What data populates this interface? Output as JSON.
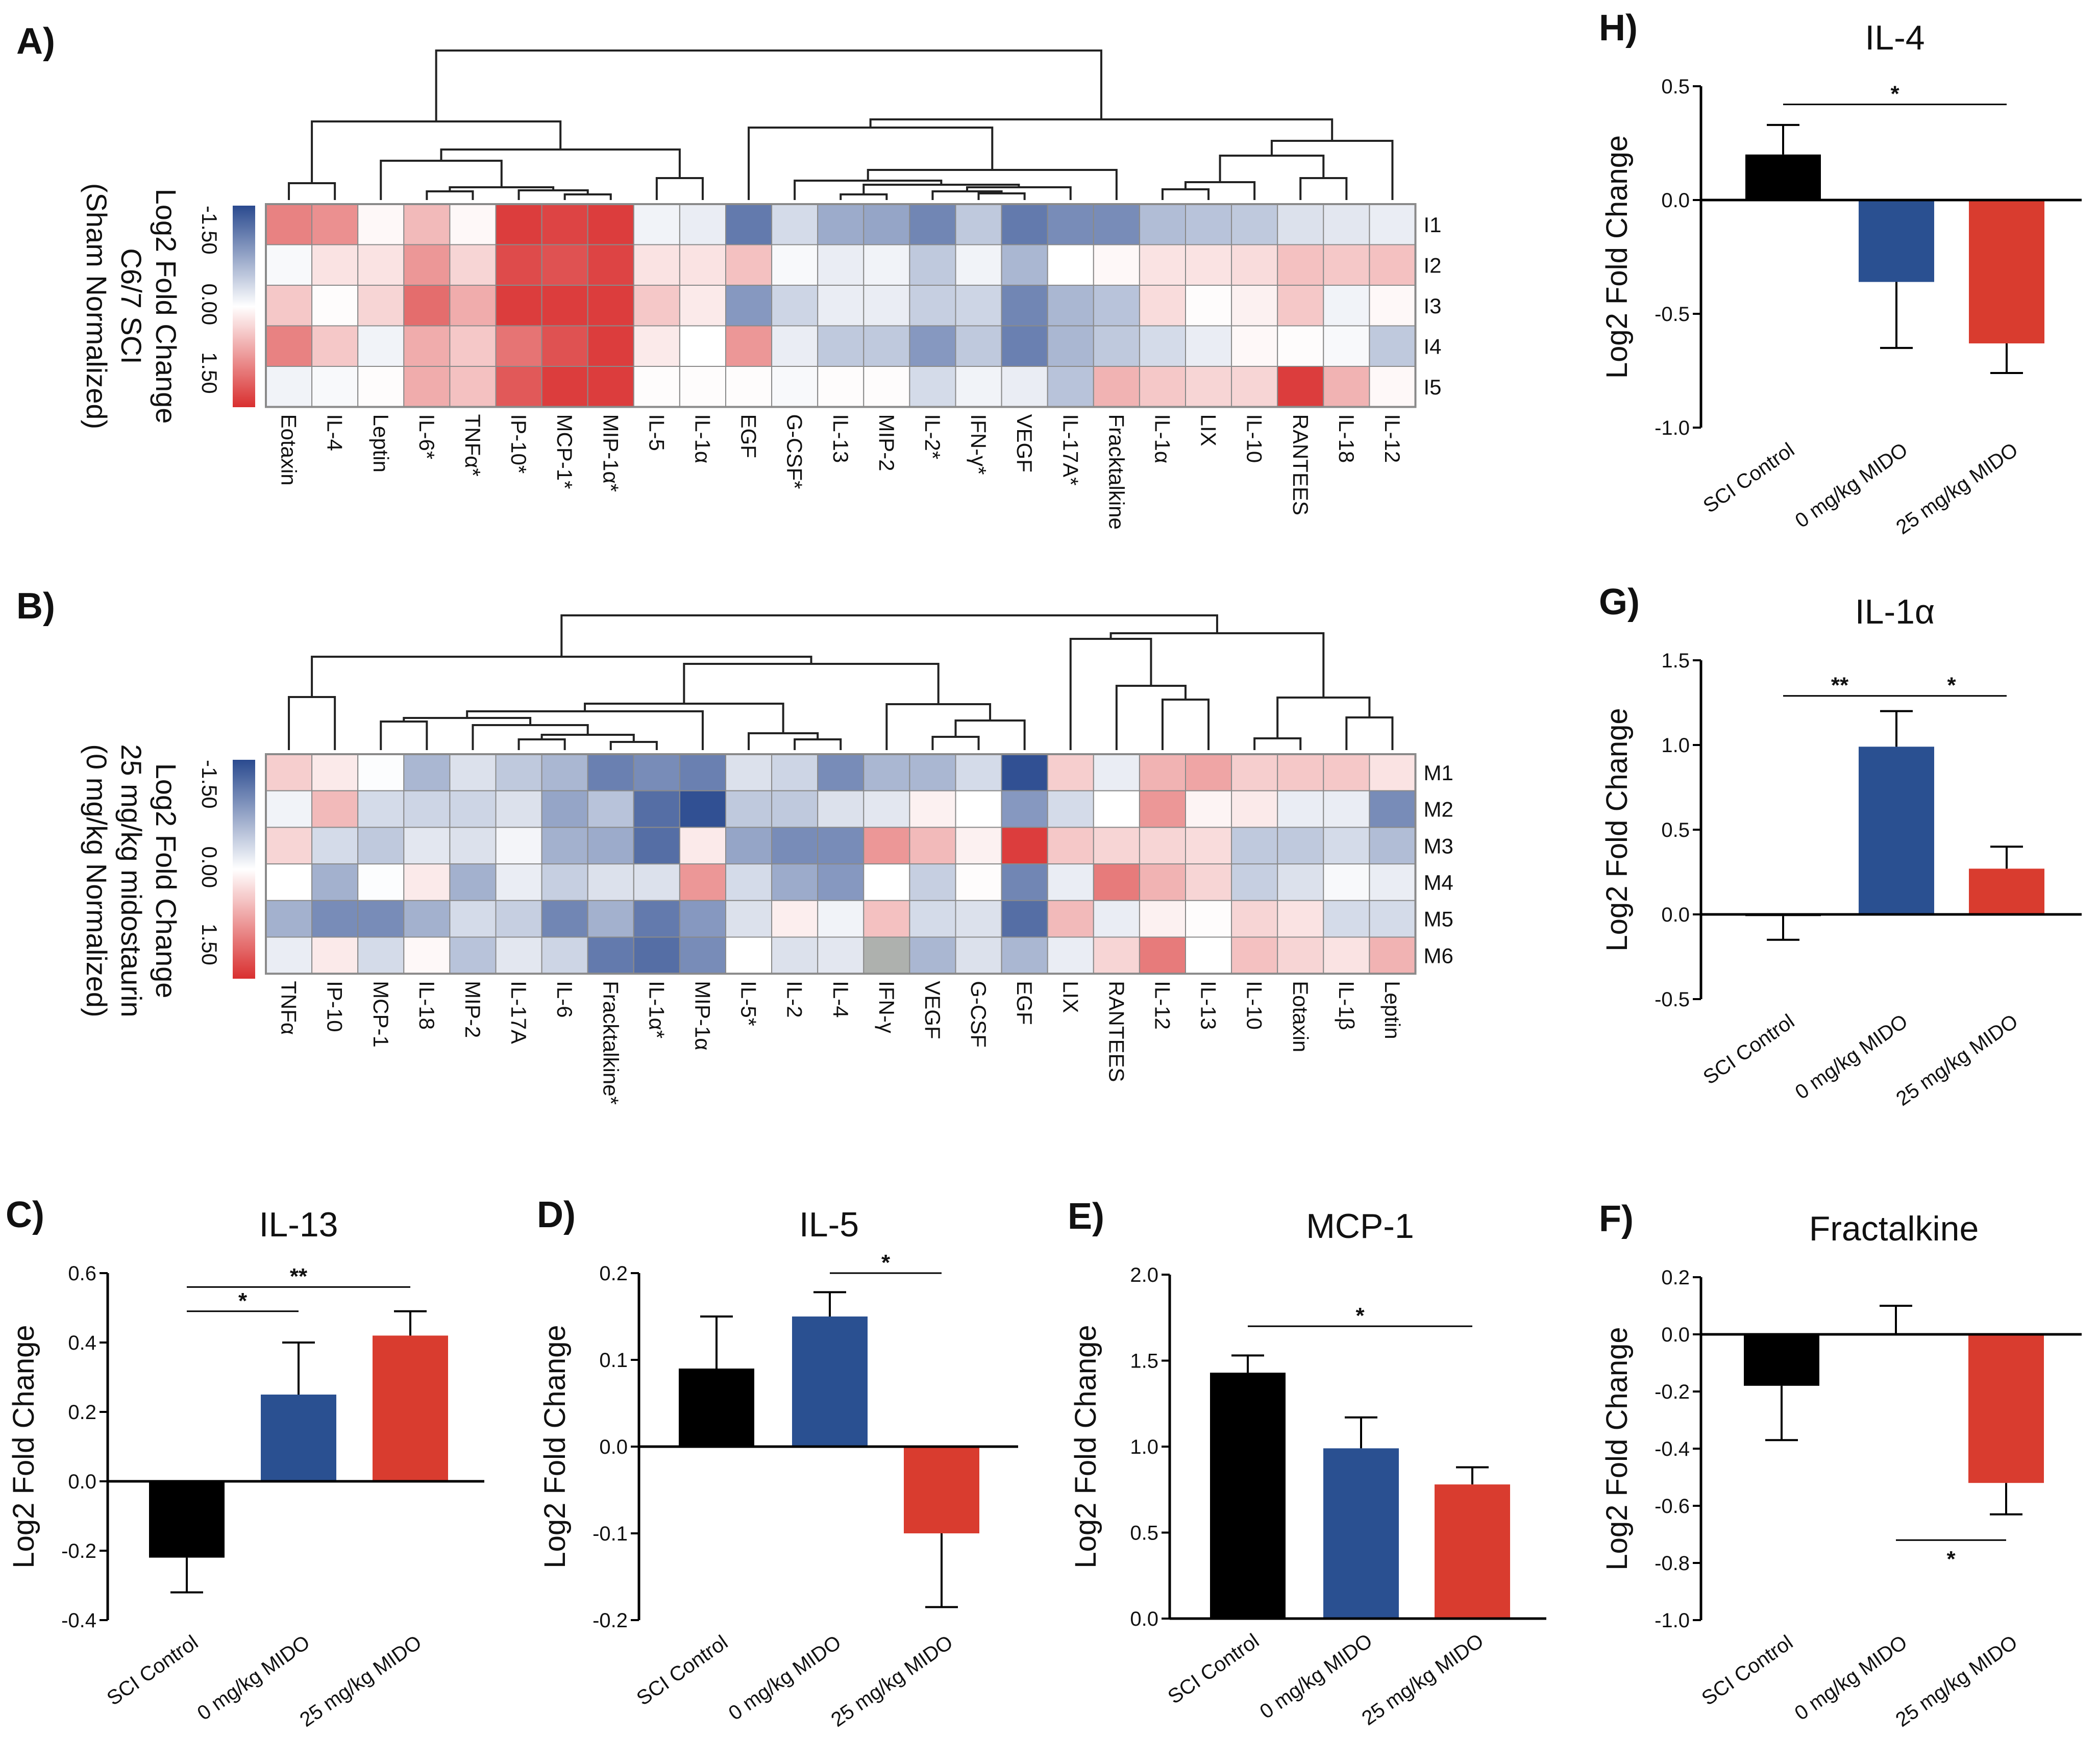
{
  "colors": {
    "control": "#000000",
    "zero_mido": "#2a5091",
    "mido_25": "#d93c2f",
    "heat_low": "#2a4a8f",
    "heat_mid": "#ffffff",
    "heat_high": "#d92f2f",
    "missing": "#aeb1ae"
  },
  "chart_data": [
    {
      "type": "heatmap",
      "panel_label": "A)",
      "legend": {
        "ticks": [
          "-1.50",
          "0.00",
          "1.50"
        ],
        "title_lines": [
          "Log2 Fold Change",
          "C6/7 SCI",
          "(Sham Normalized)"
        ],
        "range": [
          -1.5,
          1.5
        ]
      },
      "columns": [
        "Eotaxin",
        "IL-4",
        "Leptin",
        "IL-6*",
        "TNFα*",
        "IP-10*",
        "MCP-1*",
        "MIP-1α*",
        "IL-5",
        "IL-1α",
        "EGF",
        "G-CSF*",
        "IL-13",
        "MIP-2",
        "IL-2*",
        "IFN-γ*",
        "VEGF",
        "IL-17A*",
        "Fracktalkine",
        "IL-1α",
        "LIX",
        "IL-10",
        "RANTEES",
        "IL-18",
        "IL-12"
      ],
      "rows": [
        "I1",
        "I2",
        "I3",
        "I4",
        "I5"
      ],
      "values": [
        [
          0.9,
          0.8,
          0.05,
          0.5,
          0.05,
          1.4,
          1.35,
          1.4,
          -0.1,
          -0.15,
          -1.1,
          -0.3,
          -0.7,
          -0.75,
          -1.0,
          -0.45,
          -1.1,
          -0.95,
          -0.95,
          -0.55,
          -0.5,
          -0.45,
          -0.25,
          -0.2,
          -0.15
        ],
        [
          -0.05,
          0.2,
          0.2,
          0.75,
          0.3,
          1.3,
          1.25,
          1.35,
          0.2,
          0.2,
          0.45,
          -0.05,
          -0.15,
          -0.1,
          -0.45,
          -0.1,
          -0.6,
          0.0,
          0.05,
          0.2,
          0.2,
          0.25,
          0.45,
          0.4,
          0.45
        ],
        [
          0.4,
          0.02,
          0.3,
          1.05,
          0.6,
          1.4,
          1.4,
          1.4,
          0.4,
          0.15,
          -0.85,
          -0.35,
          -0.15,
          -0.15,
          -0.4,
          -0.35,
          -1.0,
          -0.6,
          -0.5,
          0.25,
          0.02,
          0.1,
          0.4,
          -0.1,
          0.05
        ],
        [
          0.9,
          0.4,
          -0.1,
          0.6,
          0.4,
          1.0,
          1.25,
          1.4,
          0.15,
          0.0,
          0.75,
          -0.15,
          -0.45,
          -0.45,
          -0.85,
          -0.45,
          -1.05,
          -0.6,
          -0.45,
          -0.3,
          -0.15,
          0.05,
          0.02,
          -0.05,
          -0.45
        ],
        [
          -0.1,
          -0.05,
          0.02,
          0.6,
          0.45,
          1.2,
          1.4,
          1.4,
          0.02,
          0.02,
          0.02,
          -0.05,
          0.02,
          0.02,
          -0.3,
          -0.1,
          -0.15,
          -0.5,
          0.55,
          0.4,
          0.3,
          0.3,
          1.4,
          0.55,
          0.05
        ]
      ]
    },
    {
      "type": "heatmap",
      "panel_label": "B)",
      "legend": {
        "ticks": [
          "-1.50",
          "0.00",
          "1.50"
        ],
        "title_lines": [
          "Log2 Fold Change",
          "25 mg/kg midostaurin",
          "(0 mg/kg Normalized)"
        ],
        "range": [
          -1.5,
          1.5
        ]
      },
      "columns": [
        "TNFα",
        "IP-10",
        "MCP-1",
        "IL-18",
        "MIP-2",
        "IL-17A",
        "IL-6",
        "Fracktalkine*",
        "IL-1α*",
        "MIP-1α",
        "IL-5*",
        "IL-2",
        "IL-4",
        "IFN-γ",
        "VEGF",
        "G-CSF",
        "EGF",
        "LIX",
        "RANTEES",
        "IL-12",
        "IL-13",
        "IL-10",
        "Eotaxin",
        "IL-1β",
        "Leptin"
      ],
      "rows": [
        "M1",
        "M2",
        "M3",
        "M4",
        "M5",
        "M6"
      ],
      "values": [
        [
          0.35,
          0.15,
          -0.02,
          -0.6,
          -0.25,
          -0.45,
          -0.6,
          -1.05,
          -0.95,
          -1.05,
          -0.25,
          -0.35,
          -0.95,
          -0.6,
          -0.6,
          -0.3,
          -1.45,
          0.35,
          -0.15,
          0.55,
          0.65,
          0.35,
          0.4,
          0.4,
          0.2
        ],
        [
          -0.1,
          0.5,
          -0.3,
          -0.35,
          -0.35,
          -0.25,
          -0.75,
          -0.5,
          -1.2,
          -1.45,
          -0.45,
          -0.45,
          -0.25,
          -0.2,
          0.1,
          0.0,
          -0.85,
          -0.3,
          0.0,
          0.75,
          0.08,
          0.15,
          -0.15,
          -0.15,
          -0.95
        ],
        [
          0.3,
          -0.3,
          -0.45,
          -0.2,
          -0.25,
          -0.08,
          -0.65,
          -0.7,
          -1.2,
          0.15,
          -0.75,
          -0.95,
          -0.95,
          0.75,
          0.5,
          0.1,
          1.4,
          0.4,
          0.3,
          0.3,
          0.25,
          -0.45,
          -0.45,
          -0.3,
          -0.55
        ],
        [
          0.0,
          -0.65,
          -0.02,
          0.15,
          -0.65,
          -0.15,
          -0.4,
          -0.25,
          -0.25,
          0.75,
          -0.3,
          -0.7,
          -0.85,
          0.0,
          -0.4,
          0.02,
          -1.0,
          -0.15,
          0.95,
          0.55,
          0.3,
          -0.4,
          -0.25,
          -0.05,
          -0.15
        ],
        [
          -0.65,
          -0.95,
          -0.95,
          -0.65,
          -0.3,
          -0.4,
          -1.0,
          -0.65,
          -1.1,
          -0.85,
          -0.25,
          0.12,
          -0.1,
          0.45,
          -0.3,
          -0.25,
          -1.2,
          0.5,
          -0.15,
          0.1,
          0.02,
          0.3,
          0.2,
          -0.3,
          -0.3
        ],
        [
          -0.15,
          0.15,
          -0.3,
          0.05,
          -0.5,
          -0.2,
          -0.35,
          -1.1,
          -1.2,
          -0.95,
          0.0,
          -0.25,
          -0.2,
          null,
          -0.6,
          -0.25,
          -0.6,
          -0.15,
          0.3,
          0.95,
          0.0,
          0.45,
          0.3,
          0.2,
          0.55
        ]
      ]
    },
    {
      "type": "bar",
      "panel_label": "H)",
      "title": "IL-4",
      "ylabel": "Log2 Fold Change",
      "ylim": [
        -1.0,
        0.5
      ],
      "yticks": [
        0.5,
        0.0,
        -0.5,
        -1.0
      ],
      "ytick_labels": [
        "0.5",
        "0.0",
        "-0.5",
        "-1.0"
      ],
      "categories": [
        "SCI Control",
        "0 mg/kg MIDO",
        "25 mg/kg MIDO"
      ],
      "values": [
        0.2,
        -0.36,
        -0.63
      ],
      "error_ends": [
        0.33,
        -0.65,
        -0.76
      ],
      "significance": [
        {
          "from": 0,
          "to": 2,
          "y": 0.42,
          "label": "*",
          "below": false
        }
      ]
    },
    {
      "type": "bar",
      "panel_label": "G)",
      "title": "IL-1α",
      "ylabel": "Log2 Fold Change",
      "ylim": [
        -0.5,
        1.5
      ],
      "yticks": [
        1.5,
        1.0,
        0.5,
        0.0,
        -0.5
      ],
      "ytick_labels": [
        "1.5",
        "1.0",
        "0.5",
        "0.0",
        "-0.5"
      ],
      "categories": [
        "SCI Control",
        "0 mg/kg MIDO",
        "25 mg/kg MIDO"
      ],
      "values": [
        -0.01,
        0.99,
        0.27
      ],
      "error_ends": [
        -0.15,
        1.2,
        0.4
      ],
      "significance": [
        {
          "from": 0,
          "to": 1,
          "y": 1.29,
          "label": "**",
          "below": false
        },
        {
          "from": 1,
          "to": 2,
          "y": 1.29,
          "label": "*",
          "below": false
        }
      ]
    },
    {
      "type": "bar",
      "panel_label": "C)",
      "title": "IL-13",
      "ylabel": "Log2 Fold Change",
      "ylim": [
        -0.4,
        0.6
      ],
      "yticks": [
        0.6,
        0.4,
        0.2,
        0.0,
        -0.2,
        -0.4
      ],
      "ytick_labels": [
        "0.6",
        "0.4",
        "0.2",
        "0.0",
        "-0.2",
        "-0.4"
      ],
      "categories": [
        "SCI Control",
        "0 mg/kg MIDO",
        "25 mg/kg MIDO"
      ],
      "values": [
        -0.22,
        0.25,
        0.42
      ],
      "error_ends": [
        -0.32,
        0.4,
        0.49
      ],
      "significance": [
        {
          "from": 0,
          "to": 1,
          "y": 0.49,
          "label": "*",
          "below": false
        },
        {
          "from": 0,
          "to": 2,
          "y": 0.56,
          "label": "**",
          "below": false
        }
      ]
    },
    {
      "type": "bar",
      "panel_label": "D)",
      "title": "IL-5",
      "ylabel": "Log2 Fold Change",
      "ylim": [
        -0.2,
        0.2
      ],
      "yticks": [
        0.2,
        0.1,
        0.0,
        -0.1,
        -0.2
      ],
      "ytick_labels": [
        "0.2",
        "0.1",
        "0.0",
        "-0.1",
        "-0.2"
      ],
      "categories": [
        "SCI Control",
        "0 mg/kg MIDO",
        "25 mg/kg MIDO"
      ],
      "values": [
        0.09,
        0.15,
        -0.1
      ],
      "error_ends": [
        0.15,
        0.178,
        -0.185
      ],
      "significance": [
        {
          "from": 1,
          "to": 2,
          "y": 0.2,
          "label": "*",
          "below": false
        }
      ]
    },
    {
      "type": "bar",
      "panel_label": "E)",
      "title": "MCP-1",
      "ylabel": "Log2 Fold Change",
      "ylim": [
        0.0,
        2.0
      ],
      "yticks": [
        2.0,
        1.5,
        1.0,
        0.5,
        0.0
      ],
      "ytick_labels": [
        "2.0",
        "1.5",
        "1.0",
        "0.5",
        "0.0"
      ],
      "categories": [
        "SCI Control",
        "0 mg/kg MIDO",
        "25 mg/kg MIDO"
      ],
      "values": [
        1.43,
        0.99,
        0.78
      ],
      "error_ends": [
        1.53,
        1.17,
        0.88
      ],
      "significance": [
        {
          "from": 0,
          "to": 2,
          "y": 1.7,
          "label": "*",
          "below": false
        }
      ]
    },
    {
      "type": "bar",
      "panel_label": "F)",
      "title": "Fractalkine",
      "ylabel": "Log2 Fold Change",
      "ylim": [
        -1.0,
        0.2
      ],
      "yticks": [
        0.2,
        0.0,
        -0.2,
        -0.4,
        -0.6,
        -0.8,
        -1.0
      ],
      "ytick_labels": [
        "0.2",
        "0.0",
        "-0.2",
        "-0.4",
        "-0.6",
        "-0.8",
        "-1.0"
      ],
      "categories": [
        "SCI Control",
        "0 mg/kg MIDO",
        "25 mg/kg MIDO"
      ],
      "values": [
        -0.18,
        0.0,
        -0.52
      ],
      "error_ends": [
        -0.37,
        0.1,
        -0.63
      ],
      "significance": [
        {
          "from": 1,
          "to": 2,
          "y": -0.72,
          "label": "*",
          "below": true
        }
      ]
    }
  ]
}
